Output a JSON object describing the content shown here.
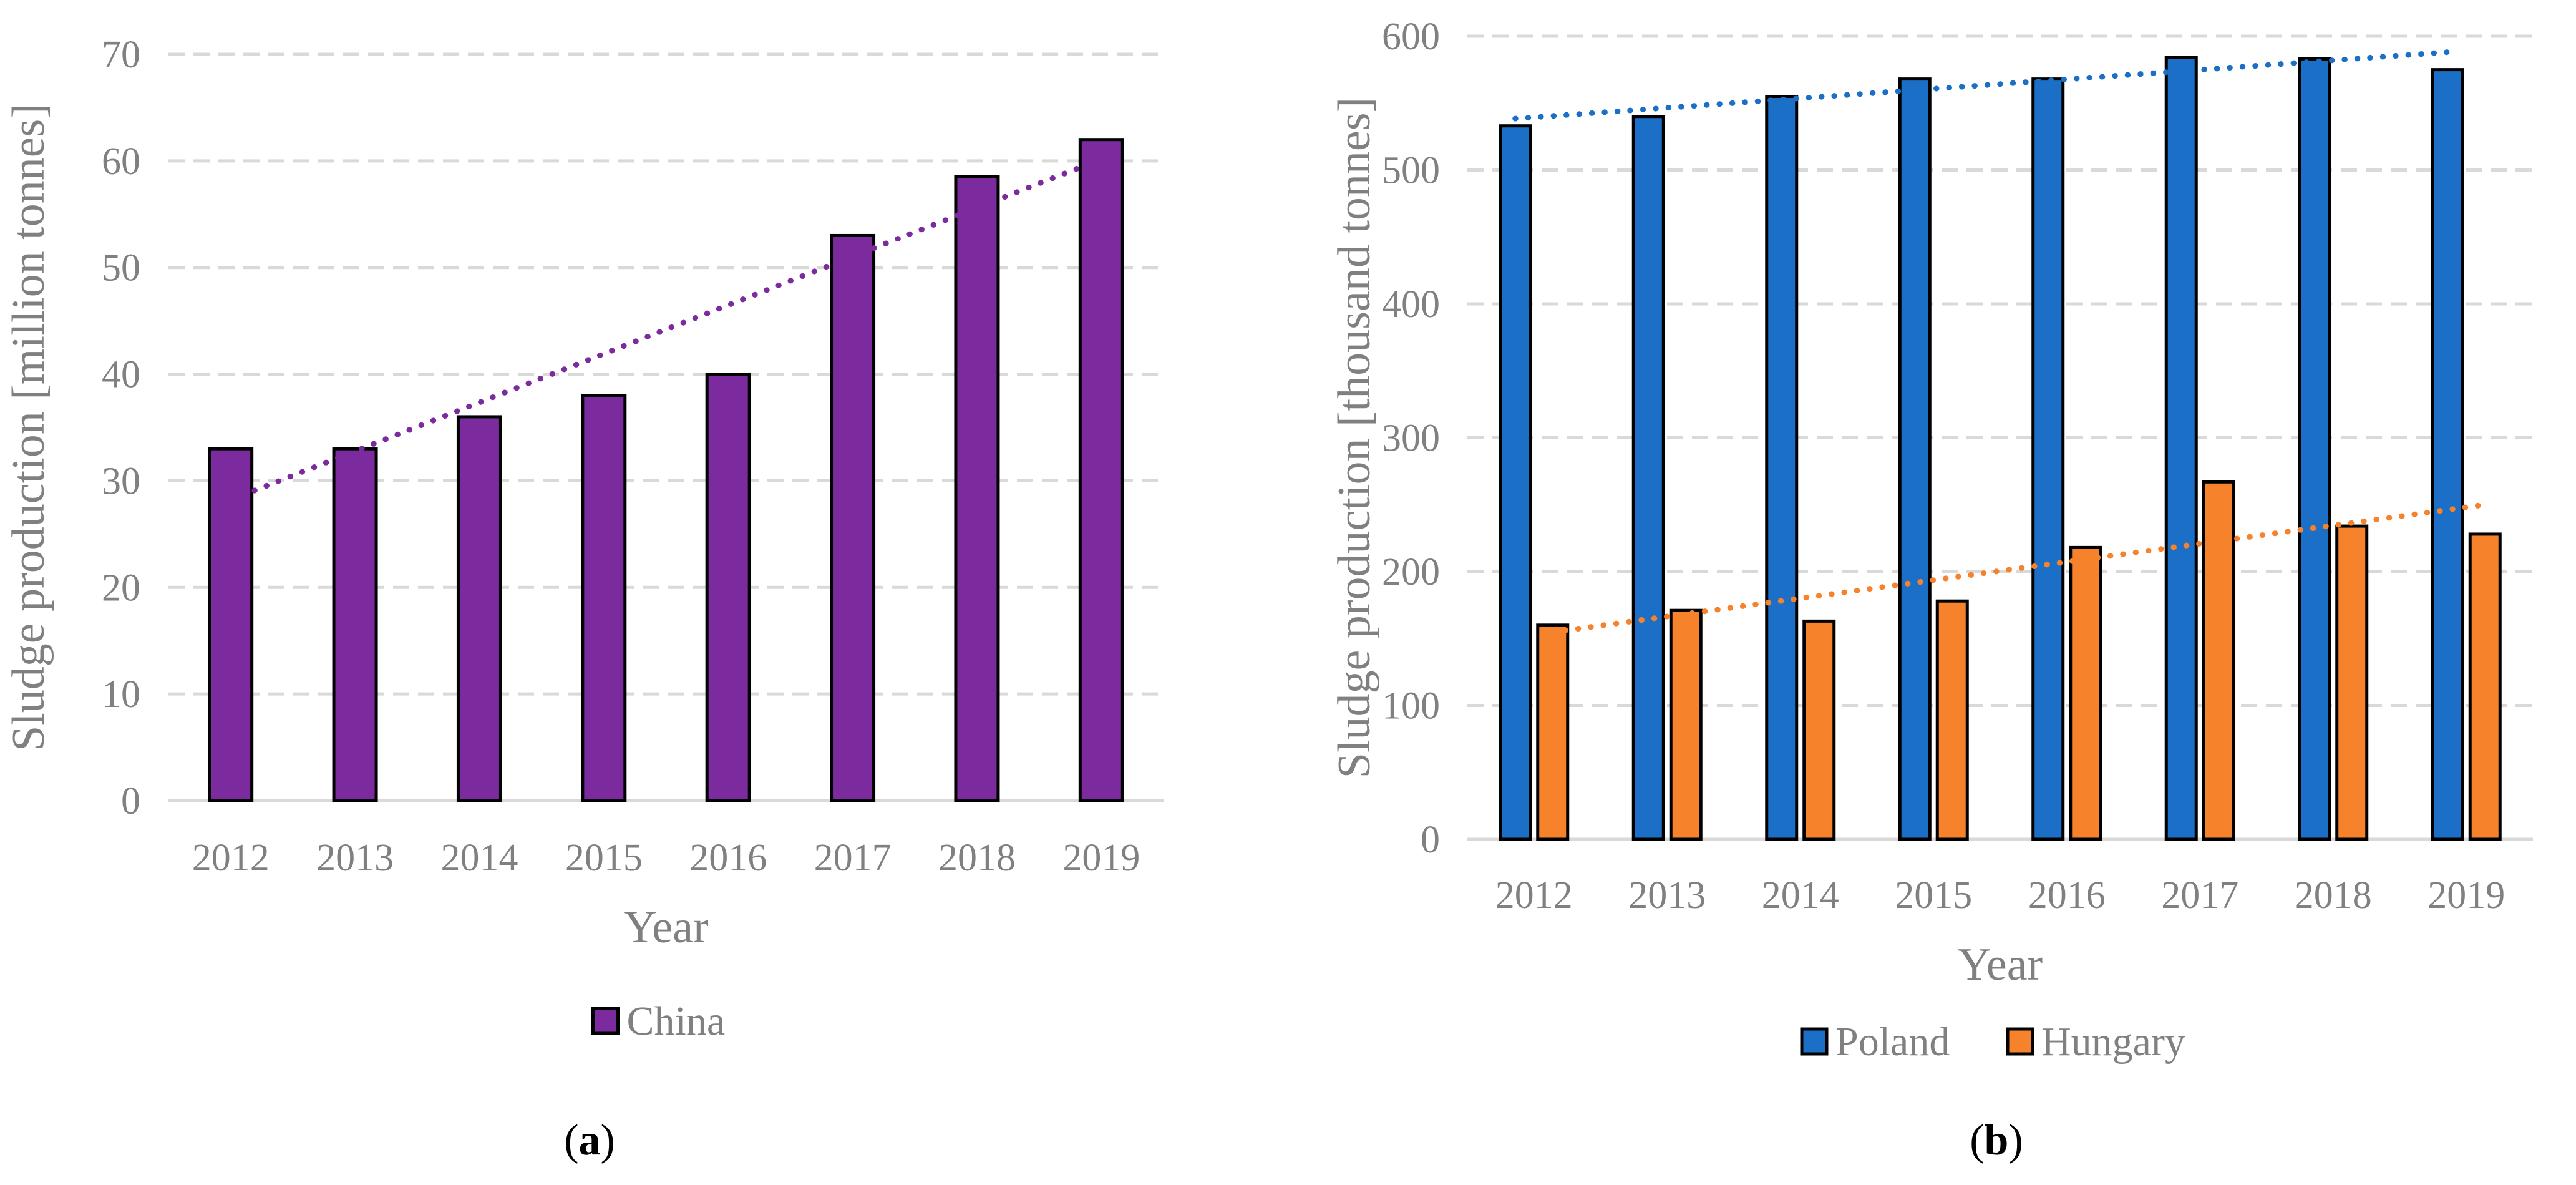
{
  "chart_data": [
    {
      "type": "bar",
      "panel_label": "a",
      "title": "",
      "xlabel": "Year",
      "ylabel": "Sludge production [million tonnes]",
      "ylim": [
        0,
        70
      ],
      "yticks": [
        "0",
        "10",
        "20",
        "30",
        "40",
        "50",
        "60",
        "70"
      ],
      "categories": [
        "2012",
        "2013",
        "2014",
        "2015",
        "2016",
        "2017",
        "2018",
        "2019"
      ],
      "grid": true,
      "legend_placement": "bottom",
      "series": [
        {
          "name": "China",
          "color": "#7b2b9e",
          "values": [
            33,
            33,
            36,
            38,
            40,
            53,
            58.5,
            62
          ],
          "trendline": "linear"
        }
      ]
    },
    {
      "type": "bar",
      "panel_label": "b",
      "title": "",
      "xlabel": "Year",
      "ylabel": "Sludge production [thousand tonnes]",
      "ylim": [
        0,
        600
      ],
      "yticks": [
        "0",
        "100",
        "200",
        "300",
        "400",
        "500",
        "600"
      ],
      "categories": [
        "2012",
        "2013",
        "2014",
        "2015",
        "2016",
        "2017",
        "2018",
        "2019"
      ],
      "grid": true,
      "legend_placement": "bottom",
      "series": [
        {
          "name": "Poland",
          "color": "#1c6fc6",
          "values": [
            533,
            540,
            555,
            568,
            568,
            584,
            583,
            575
          ],
          "trendline": "linear"
        },
        {
          "name": "Hungary",
          "color": "#f6822c",
          "values": [
            160,
            171,
            163,
            178,
            218,
            267,
            234,
            228
          ],
          "trendline": "linear"
        }
      ]
    }
  ]
}
